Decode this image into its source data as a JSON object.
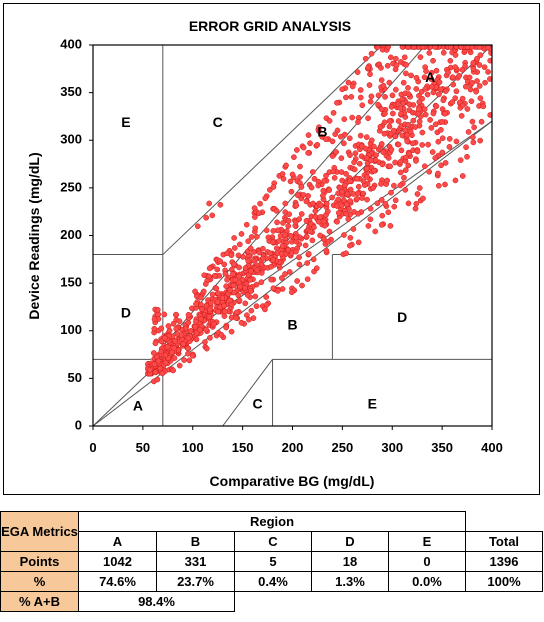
{
  "chart_data": {
    "type": "scatter",
    "title": "ERROR GRID ANALYSIS",
    "xlabel": "Comparative BG (mg/dL)",
    "ylabel": "Device Readings (mg/dL)",
    "xlim": [
      0,
      400
    ],
    "ylim": [
      0,
      400
    ],
    "x_ticks": [
      "0",
      "50",
      "100",
      "150",
      "200",
      "250",
      "300",
      "350",
      "400"
    ],
    "y_ticks": [
      "0",
      "50",
      "100",
      "150",
      "200",
      "250",
      "300",
      "350",
      "400"
    ],
    "grid": false,
    "point_color": "#ff4a4a",
    "zone_labels": [
      {
        "label": "E",
        "x": 33,
        "y": 318
      },
      {
        "label": "C",
        "x": 125,
        "y": 318
      },
      {
        "label": "B",
        "x": 230,
        "y": 308
      },
      {
        "label": "A",
        "x": 338,
        "y": 365
      },
      {
        "label": "D",
        "x": 33,
        "y": 118
      },
      {
        "label": "B",
        "x": 200,
        "y": 105
      },
      {
        "label": "D",
        "x": 310,
        "y": 113
      },
      {
        "label": "A",
        "x": 45,
        "y": 20
      },
      {
        "label": "C",
        "x": 165,
        "y": 22
      },
      {
        "label": "E",
        "x": 280,
        "y": 22
      }
    ],
    "zone_lines": [
      [
        [
          70,
          400
        ],
        [
          70,
          0
        ]
      ],
      [
        [
          0,
          70
        ],
        [
          58.3,
          70
        ]
      ],
      [
        [
          58.3,
          70
        ],
        [
          400,
          320
        ]
      ],
      [
        [
          0,
          0
        ],
        [
          400,
          400
        ]
      ],
      [
        [
          0,
          0
        ],
        [
          70,
          56
        ]
      ],
      [
        [
          70,
          56
        ],
        [
          400,
          320
        ]
      ],
      [
        [
          70,
          84
        ],
        [
          400,
          480
        ]
      ],
      [
        [
          0,
          180
        ],
        [
          70,
          180
        ]
      ],
      [
        [
          70,
          180
        ],
        [
          290,
          400
        ]
      ],
      [
        [
          130,
          0
        ],
        [
          180,
          70
        ]
      ],
      [
        [
          180,
          70
        ],
        [
          180,
          0
        ]
      ],
      [
        [
          180,
          70
        ],
        [
          400,
          70
        ]
      ],
      [
        [
          240,
          70
        ],
        [
          240,
          180
        ]
      ],
      [
        [
          240,
          180
        ],
        [
          400,
          180
        ]
      ]
    ],
    "counts": {
      "A": 1042,
      "B": 331,
      "C": 5,
      "D": 18,
      "E": 0,
      "Total": 1396
    }
  },
  "table": {
    "metrics_label": "EGA Metrics",
    "region_label": "Region",
    "columns": [
      "A",
      "B",
      "C",
      "D",
      "E",
      "Total"
    ],
    "points_label": "Points",
    "points": [
      "1042",
      "331",
      "5",
      "18",
      "0",
      "1396"
    ],
    "pct_label": "%",
    "pct": [
      "74.6%",
      "23.7%",
      "0.4%",
      "1.3%",
      "0.0%",
      "100%"
    ],
    "ab_label": "% A+B",
    "ab_value": "98.4%"
  }
}
